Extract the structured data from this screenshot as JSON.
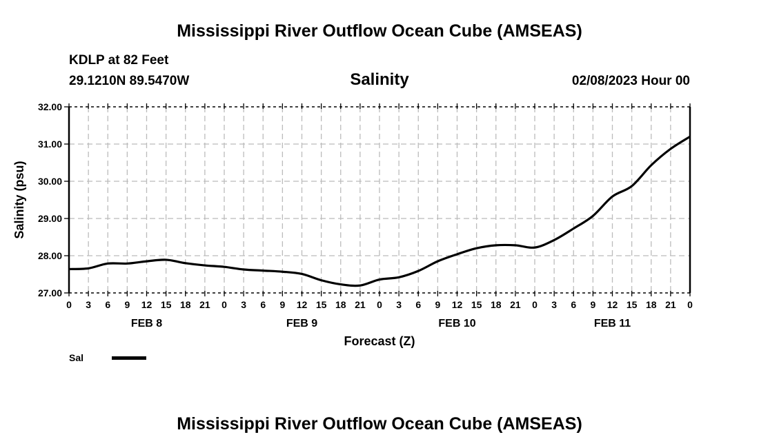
{
  "header": {
    "title": "Mississippi River Outflow Ocean Cube (AMSEAS)",
    "station": "KDLP at 82 Feet",
    "coords": "29.1210N  89.5470W",
    "datetime": "02/08/2023 Hour 00",
    "footer_title": "Mississippi River Outflow Ocean Cube (AMSEAS)"
  },
  "legend": {
    "label": "Sal"
  },
  "chart_data": {
    "type": "line",
    "title": "Salinity",
    "xlabel": "Forecast (Z)",
    "ylabel": "Salinity (psu)",
    "ylim": [
      27,
      32
    ],
    "xlim_hours": [
      0,
      96
    ],
    "yticks": [
      "27.00",
      "28.00",
      "29.00",
      "30.00",
      "31.00",
      "32.00"
    ],
    "xtick_labels": [
      "0",
      "3",
      "6",
      "9",
      "12",
      "15",
      "18",
      "21",
      "0",
      "3",
      "6",
      "9",
      "12",
      "15",
      "18",
      "21",
      "0",
      "3",
      "6",
      "9",
      "12",
      "15",
      "18",
      "21",
      "0",
      "3",
      "6",
      "9",
      "12",
      "15",
      "18",
      "21",
      "0"
    ],
    "day_labels": [
      "FEB 8",
      "FEB 9",
      "FEB 10",
      "FEB 11"
    ],
    "grid": true,
    "line_color": "#000000",
    "grid_color": "#bbbbbb",
    "series": [
      {
        "name": "Sal",
        "x_hours": [
          0,
          3,
          6,
          9,
          12,
          15,
          18,
          21,
          24,
          27,
          30,
          33,
          36,
          39,
          42,
          45,
          48,
          51,
          54,
          57,
          60,
          63,
          66,
          69,
          72,
          75,
          78,
          81,
          84,
          87,
          90,
          93,
          96
        ],
        "values": [
          27.64,
          27.66,
          27.79,
          27.79,
          27.85,
          27.89,
          27.8,
          27.74,
          27.7,
          27.63,
          27.6,
          27.57,
          27.51,
          27.34,
          27.23,
          27.2,
          27.36,
          27.42,
          27.59,
          27.85,
          28.04,
          28.2,
          28.28,
          28.28,
          28.22,
          28.42,
          28.73,
          29.07,
          29.59,
          29.87,
          30.43,
          30.87,
          31.2
        ]
      }
    ]
  }
}
